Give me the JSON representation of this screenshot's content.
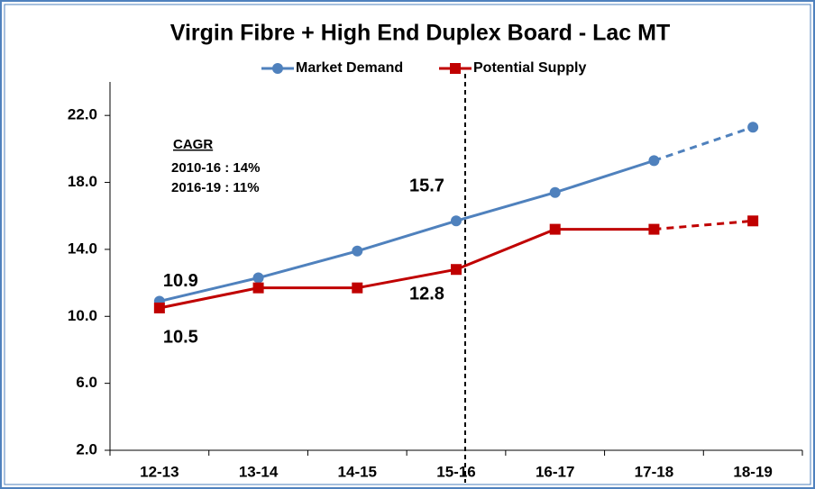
{
  "chart_data": {
    "type": "line",
    "title": "Virgin Fibre + High End Duplex Board - Lac MT",
    "categories": [
      "12-13",
      "13-14",
      "14-15",
      "15-16",
      "16-17",
      "17-18",
      "18-19"
    ],
    "series": [
      {
        "name": "Market Demand",
        "color": "#4f81bd",
        "marker": "circle",
        "values": [
          10.9,
          12.3,
          13.9,
          15.7,
          17.4,
          19.3,
          21.3
        ]
      },
      {
        "name": "Potential Supply",
        "color": "#c00000",
        "marker": "square",
        "values": [
          10.5,
          11.7,
          11.7,
          12.8,
          15.2,
          15.2,
          15.7
        ]
      }
    ],
    "ylim": [
      2,
      24
    ],
    "yticks": [
      {
        "value": 2,
        "label": "2.0"
      },
      {
        "value": 6,
        "label": "6.0"
      },
      {
        "value": 10,
        "label": "10.0"
      },
      {
        "value": 14,
        "label": "14.0"
      },
      {
        "value": 18,
        "label": "18.0"
      },
      {
        "value": 22,
        "label": "22.0"
      }
    ],
    "label_indices": [
      0,
      3
    ],
    "projection_start": 5,
    "divider_index": 3,
    "legend": "top",
    "annotations": [
      "CAGR",
      "2010-16 : 14%",
      "2016-19 : 11%"
    ]
  }
}
